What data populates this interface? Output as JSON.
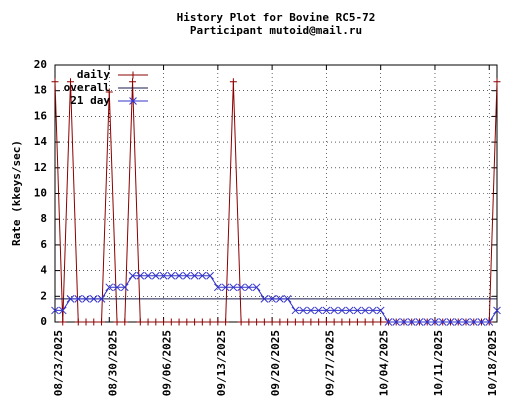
{
  "chart_data": {
    "type": "line",
    "title": "History Plot for Bovine RC5-72",
    "subtitle": "Participant mutoid@mail.ru",
    "y_label": "Rate (kkeys/sec)",
    "x": [
      "08/23/2025",
      "08/24/2025",
      "08/25/2025",
      "08/26/2025",
      "08/27/2025",
      "08/28/2025",
      "08/29/2025",
      "08/30/2025",
      "08/31/2025",
      "09/01/2025",
      "09/02/2025",
      "09/03/2025",
      "09/04/2025",
      "09/05/2025",
      "09/06/2025",
      "09/07/2025",
      "09/08/2025",
      "09/09/2025",
      "09/10/2025",
      "09/11/2025",
      "09/12/2025",
      "09/13/2025",
      "09/14/2025",
      "09/15/2025",
      "09/16/2025",
      "09/17/2025",
      "09/18/2025",
      "09/19/2025",
      "09/20/2025",
      "09/21/2025",
      "09/22/2025",
      "09/23/2025",
      "09/24/2025",
      "09/25/2025",
      "09/26/2025",
      "09/27/2025",
      "09/28/2025",
      "09/29/2025",
      "09/30/2025",
      "10/01/2025",
      "10/02/2025",
      "10/03/2025",
      "10/04/2025",
      "10/05/2025",
      "10/06/2025",
      "10/07/2025",
      "10/08/2025",
      "10/09/2025",
      "10/10/2025",
      "10/11/2025",
      "10/12/2025",
      "10/13/2025",
      "10/14/2025",
      "10/15/2025",
      "10/16/2025",
      "10/17/2025",
      "10/18/2025",
      "10/19/2025"
    ],
    "series": [
      {
        "name": "daily",
        "color": "#8b0000",
        "marker": "plus",
        "values": [
          18.7,
          0,
          18.7,
          0,
          0,
          0,
          0,
          17.9,
          0,
          0,
          18.7,
          0,
          0,
          0,
          0,
          0,
          0,
          0,
          0,
          0,
          0,
          0,
          0,
          18.7,
          0,
          0,
          0,
          0,
          0,
          0,
          0,
          0,
          0,
          0,
          0,
          0,
          0,
          0,
          0,
          0,
          0,
          0,
          0,
          0,
          0,
          0,
          0,
          0,
          0,
          0,
          0,
          0,
          0,
          0,
          0,
          0,
          0,
          18.7
        ]
      },
      {
        "name": "overall",
        "color": "#1a1a4d",
        "values": [
          1.8,
          1.8,
          1.8,
          1.8,
          1.8,
          1.8,
          1.8,
          1.8,
          1.8,
          1.8,
          1.8,
          1.8,
          1.8,
          1.8,
          1.8,
          1.8,
          1.8,
          1.8,
          1.8,
          1.8,
          1.8,
          1.8,
          1.8,
          1.8,
          1.8,
          1.8,
          1.8,
          1.8,
          1.8,
          1.8,
          1.8,
          1.8,
          1.8,
          1.8,
          1.8,
          1.8,
          1.8,
          1.8,
          1.8,
          1.8,
          1.8,
          1.8,
          1.8,
          1.8,
          1.8,
          1.8,
          1.8,
          1.8,
          1.8,
          1.8,
          1.8,
          1.8,
          1.8,
          1.8,
          1.8,
          1.8,
          1.8,
          1.8
        ]
      },
      {
        "name": "21 day",
        "color": "#3333cc",
        "marker": "cross",
        "values": [
          0.9,
          0.9,
          1.8,
          1.8,
          1.8,
          1.8,
          1.8,
          2.7,
          2.7,
          2.7,
          3.6,
          3.6,
          3.6,
          3.6,
          3.6,
          3.6,
          3.6,
          3.6,
          3.6,
          3.6,
          3.6,
          2.7,
          2.7,
          2.7,
          2.7,
          2.7,
          2.7,
          1.8,
          1.8,
          1.8,
          1.8,
          0.9,
          0.9,
          0.9,
          0.9,
          0.9,
          0.9,
          0.9,
          0.9,
          0.9,
          0.9,
          0.9,
          0.9,
          0,
          0,
          0,
          0,
          0,
          0,
          0,
          0,
          0,
          0,
          0,
          0,
          0,
          0,
          0.9
        ]
      }
    ],
    "xlim": [
      "08/23/2025",
      "10/19/2025"
    ],
    "xticks": [
      "08/23/2025",
      "08/30/2025",
      "09/06/2025",
      "09/13/2025",
      "09/20/2025",
      "09/27/2025",
      "10/04/2025",
      "10/11/2025",
      "10/18/2025"
    ],
    "ylim": [
      0,
      20
    ],
    "yticks": [
      0,
      2,
      4,
      6,
      8,
      10,
      12,
      14,
      16,
      18,
      20
    ],
    "grid": true,
    "legend": "top-left"
  }
}
